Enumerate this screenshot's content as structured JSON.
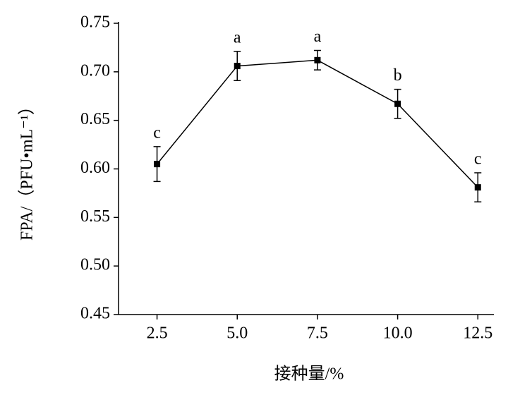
{
  "chart_data": {
    "type": "line",
    "xlabel": "接种量/%",
    "ylabel": "FPA/（PFU•mL⁻¹）",
    "x": [
      2.5,
      5,
      7.5,
      10,
      12.5
    ],
    "series": [
      {
        "color": "#000000",
        "values": [
          0.605,
          0.706,
          0.712,
          0.667,
          0.581
        ],
        "errors": [
          0.018,
          0.015,
          0.01,
          0.015,
          0.015
        ],
        "labels": [
          "c",
          "a",
          "a",
          "b",
          "c"
        ]
      }
    ],
    "xlim": [
      1.3,
      13
    ],
    "xticks": [
      {
        "value": 2.5,
        "label": "2.5"
      },
      {
        "value": 5,
        "label": "5.0"
      },
      {
        "value": 7.5,
        "label": "7.5"
      },
      {
        "value": 10,
        "label": "10.0"
      },
      {
        "value": 12.5,
        "label": "12.5"
      }
    ],
    "ylim": [
      0.45,
      0.75
    ],
    "yticks": [
      0.45,
      {
        "value": 0.5,
        "label": "0.50"
      },
      0.55,
      {
        "value": 0.6,
        "label": "0.60"
      },
      0.65,
      {
        "value": 0.7,
        "label": "0.70"
      },
      0.75
    ],
    "grid": false
  }
}
